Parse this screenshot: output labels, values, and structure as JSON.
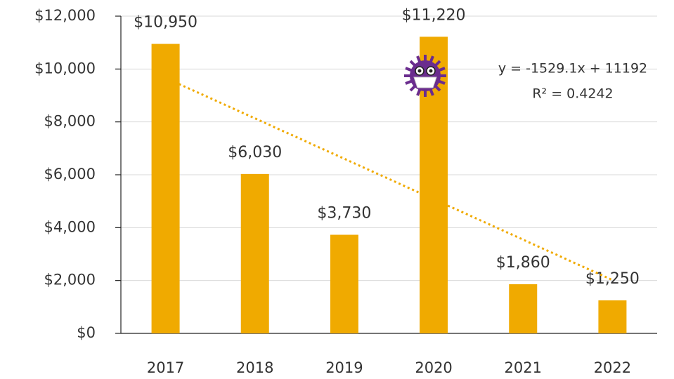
{
  "chart_data": {
    "type": "bar",
    "categories": [
      "2017",
      "2018",
      "2019",
      "2020",
      "2021",
      "2022"
    ],
    "values": [
      10950,
      6030,
      3730,
      11220,
      1860,
      1250
    ],
    "value_labels": [
      "$10,950",
      "$6,030",
      "$3,730",
      "$11,220",
      "$1,860",
      "$1,250"
    ],
    "color": "#f0aa00",
    "ylim": [
      0,
      12000
    ],
    "yticks": [
      {
        "value": 0,
        "label": "$0"
      },
      {
        "value": 2000,
        "label": "$2,000"
      },
      {
        "value": 4000,
        "label": "$4,000"
      },
      {
        "value": 6000,
        "label": "$6,000"
      },
      {
        "value": 8000,
        "label": "$8,000"
      },
      {
        "value": 10000,
        "label": "$10,000"
      },
      {
        "value": 12000,
        "label": "$12,000"
      }
    ],
    "grid": true,
    "trendline": {
      "slope": -1529.1,
      "intercept": 11192,
      "labels": [
        "y = -1529.1x + 11192",
        "R² = 0.4242"
      ]
    }
  }
}
